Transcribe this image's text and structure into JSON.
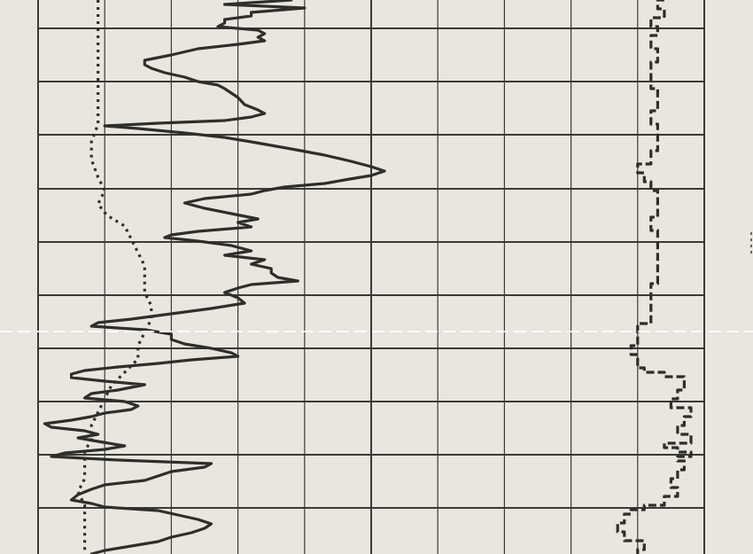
{
  "chart_data": {
    "type": "line",
    "orientation": "vertical-log",
    "title": "",
    "xlabel": "",
    "ylabel": "",
    "grid": true,
    "legend": "none",
    "colors": {
      "paper": "#e9e6e0",
      "grid": "#3a3a36",
      "trace": "#2e2e2a"
    },
    "track": {
      "column_count": 10,
      "x_range": [
        0,
        10
      ],
      "depth_range": [
        0,
        625
      ]
    },
    "series": [
      {
        "style": "solid",
        "points": [
          [
            0,
            3.8
          ],
          [
            5,
            2.8
          ],
          [
            9,
            4.0
          ],
          [
            14,
            3.2
          ],
          [
            18,
            3.2
          ],
          [
            22,
            2.8
          ],
          [
            26,
            2.8
          ],
          [
            30,
            2.7
          ],
          [
            34,
            3.3
          ],
          [
            38,
            3.4
          ],
          [
            42,
            3.3
          ],
          [
            46,
            3.4
          ],
          [
            50,
            3.0
          ],
          [
            55,
            2.4
          ],
          [
            62,
            2.0
          ],
          [
            68,
            1.6
          ],
          [
            73,
            1.6
          ],
          [
            77,
            1.7
          ],
          [
            82,
            1.9
          ],
          [
            87,
            2.2
          ],
          [
            92,
            2.4
          ],
          [
            96,
            2.7
          ],
          [
            100,
            2.8
          ],
          [
            105,
            2.9
          ],
          [
            110,
            3.0
          ],
          [
            118,
            3.1
          ],
          [
            124,
            3.3
          ],
          [
            128,
            3.4
          ],
          [
            132,
            3.2
          ],
          [
            136,
            2.8
          ],
          [
            139,
            1.8
          ],
          [
            142,
            1.0
          ],
          [
            145,
            1.5
          ],
          [
            150,
            2.2
          ],
          [
            155,
            2.8
          ],
          [
            160,
            3.2
          ],
          [
            168,
            3.8
          ],
          [
            175,
            4.3
          ],
          [
            182,
            4.7
          ],
          [
            188,
            5.0
          ],
          [
            193,
            5.2
          ],
          [
            198,
            5.0
          ],
          [
            203,
            4.6
          ],
          [
            207,
            4.3
          ],
          [
            211,
            3.7
          ],
          [
            215,
            3.4
          ],
          [
            219,
            3.2
          ],
          [
            224,
            2.5
          ],
          [
            229,
            2.2
          ],
          [
            235,
            2.5
          ],
          [
            241,
            2.9
          ],
          [
            247,
            3.3
          ],
          [
            251,
            3.0
          ],
          [
            256,
            3.2
          ],
          [
            261,
            2.4
          ],
          [
            265,
            2.0
          ],
          [
            268,
            1.9
          ],
          [
            272,
            2.4
          ],
          [
            277,
            2.9
          ],
          [
            283,
            3.2
          ],
          [
            288,
            2.8
          ],
          [
            293,
            3.4
          ],
          [
            298,
            3.2
          ],
          [
            303,
            3.5
          ],
          [
            308,
            3.5
          ],
          [
            313,
            3.6
          ],
          [
            317,
            3.9
          ],
          [
            321,
            3.2
          ],
          [
            325,
            3.0
          ],
          [
            330,
            2.8
          ],
          [
            336,
            3.0
          ],
          [
            342,
            3.1
          ],
          [
            348,
            2.6
          ],
          [
            354,
            2.0
          ],
          [
            360,
            1.4
          ],
          [
            364,
            0.9
          ],
          [
            368,
            0.8
          ],
          [
            372,
            1.6
          ],
          [
            377,
            2.0
          ],
          [
            383,
            2.0
          ],
          [
            388,
            2.2
          ],
          [
            393,
            2.6
          ],
          [
            398,
            2.9
          ],
          [
            402,
            3.0
          ],
          [
            406,
            2.3
          ],
          [
            410,
            1.8
          ],
          [
            414,
            1.2
          ],
          [
            418,
            0.7
          ],
          [
            422,
            0.5
          ],
          [
            426,
            0.5
          ],
          [
            430,
            1.0
          ],
          [
            434,
            1.6
          ],
          [
            437,
            1.4
          ],
          [
            440,
            1.2
          ],
          [
            444,
            0.8
          ],
          [
            449,
            0.7
          ],
          [
            453,
            1.3
          ],
          [
            458,
            1.5
          ],
          [
            462,
            1.4
          ],
          [
            466,
            1.0
          ],
          [
            470,
            0.8
          ],
          [
            474,
            0.5
          ],
          [
            478,
            0.1
          ],
          [
            482,
            0.2
          ],
          [
            486,
            0.7
          ],
          [
            490,
            0.9
          ],
          [
            494,
            0.6
          ],
          [
            498,
            0.9
          ],
          [
            503,
            1.3
          ],
          [
            507,
            1.0
          ],
          [
            511,
            0.4
          ],
          [
            515,
            0.2
          ],
          [
            519,
            1.2
          ],
          [
            523,
            2.6
          ],
          [
            527,
            2.5
          ],
          [
            532,
            2.0
          ],
          [
            537,
            1.8
          ],
          [
            542,
            1.6
          ],
          [
            547,
            1.0
          ],
          [
            552,
            0.8
          ],
          [
            558,
            0.6
          ],
          [
            564,
            0.5
          ],
          [
            568,
            0.8
          ],
          [
            572,
            1.0
          ],
          [
            576,
            1.8
          ],
          [
            581,
            2.1
          ],
          [
            586,
            2.4
          ],
          [
            591,
            2.6
          ],
          [
            596,
            2.5
          ],
          [
            601,
            2.3
          ],
          [
            606,
            2.0
          ],
          [
            611,
            1.8
          ],
          [
            616,
            1.4
          ],
          [
            621,
            1.0
          ],
          [
            625,
            0.8
          ]
        ]
      },
      {
        "style": "dotted",
        "points": [
          [
            0,
            0.9
          ],
          [
            20,
            0.9
          ],
          [
            40,
            0.9
          ],
          [
            60,
            0.9
          ],
          [
            80,
            0.9
          ],
          [
            100,
            0.9
          ],
          [
            120,
            0.9
          ],
          [
            140,
            0.9
          ],
          [
            160,
            0.8
          ],
          [
            180,
            0.8
          ],
          [
            200,
            0.9
          ],
          [
            215,
            1.0
          ],
          [
            230,
            0.9
          ],
          [
            240,
            1.0
          ],
          [
            246,
            1.1
          ],
          [
            255,
            1.3
          ],
          [
            270,
            1.4
          ],
          [
            285,
            1.5
          ],
          [
            300,
            1.6
          ],
          [
            315,
            1.6
          ],
          [
            330,
            1.6
          ],
          [
            345,
            1.7
          ],
          [
            360,
            1.7
          ],
          [
            375,
            1.6
          ],
          [
            390,
            1.5
          ],
          [
            405,
            1.5
          ],
          [
            420,
            1.3
          ],
          [
            435,
            1.1
          ],
          [
            450,
            1.0
          ],
          [
            465,
            0.9
          ],
          [
            480,
            0.8
          ],
          [
            495,
            0.8
          ],
          [
            510,
            0.7
          ],
          [
            525,
            0.7
          ],
          [
            540,
            0.7
          ],
          [
            555,
            0.6
          ],
          [
            570,
            0.7
          ],
          [
            585,
            0.7
          ],
          [
            600,
            0.7
          ],
          [
            625,
            0.7
          ]
        ]
      },
      {
        "style": "dashed-step",
        "points": [
          [
            0,
            9.4
          ],
          [
            10,
            9.3
          ],
          [
            20,
            9.4
          ],
          [
            30,
            9.2
          ],
          [
            40,
            9.3
          ],
          [
            55,
            9.2
          ],
          [
            70,
            9.3
          ],
          [
            85,
            9.2
          ],
          [
            100,
            9.2
          ],
          [
            115,
            9.3
          ],
          [
            125,
            9.3
          ],
          [
            140,
            9.2
          ],
          [
            155,
            9.3
          ],
          [
            170,
            9.3
          ],
          [
            185,
            9.2
          ],
          [
            195,
            9.0
          ],
          [
            205,
            9.1
          ],
          [
            215,
            9.2
          ],
          [
            230,
            9.3
          ],
          [
            245,
            9.3
          ],
          [
            260,
            9.2
          ],
          [
            275,
            9.3
          ],
          [
            290,
            9.3
          ],
          [
            305,
            9.3
          ],
          [
            320,
            9.3
          ],
          [
            335,
            9.2
          ],
          [
            350,
            9.2
          ],
          [
            365,
            9.2
          ],
          [
            375,
            9.0
          ],
          [
            390,
            9.0
          ],
          [
            400,
            8.9
          ],
          [
            408,
            9.0
          ],
          [
            415,
            9.0
          ],
          [
            420,
            9.1
          ],
          [
            425,
            9.4
          ],
          [
            430,
            9.7
          ],
          [
            440,
            9.7
          ],
          [
            450,
            9.6
          ],
          [
            460,
            9.5
          ],
          [
            470,
            9.8
          ],
          [
            480,
            9.7
          ],
          [
            490,
            9.6
          ],
          [
            500,
            9.8
          ],
          [
            505,
            9.4
          ],
          [
            510,
            9.6
          ],
          [
            515,
            9.8
          ],
          [
            520,
            9.6
          ],
          [
            530,
            9.7
          ],
          [
            540,
            9.6
          ],
          [
            550,
            9.5
          ],
          [
            560,
            9.6
          ],
          [
            570,
            9.4
          ],
          [
            575,
            9.1
          ],
          [
            580,
            8.9
          ],
          [
            590,
            8.8
          ],
          [
            600,
            8.7
          ],
          [
            610,
            8.8
          ],
          [
            620,
            9.1
          ],
          [
            625,
            9.0
          ]
        ]
      }
    ]
  }
}
